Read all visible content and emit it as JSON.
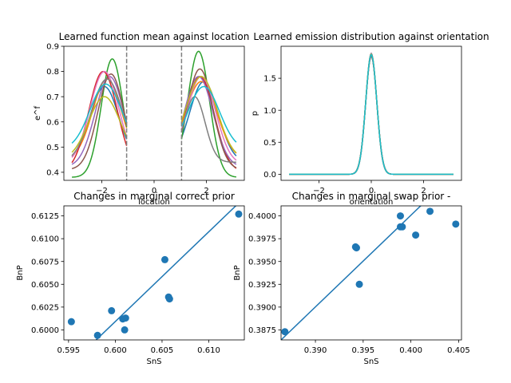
{
  "chart_data": [
    {
      "type": "line",
      "title": "Learned function mean against location",
      "xlabel": "location",
      "ylabel": "e^f",
      "xlim": [
        -3.45,
        3.45
      ],
      "ylim": [
        0.368,
        0.9
      ],
      "xticks": [
        -2,
        0,
        2
      ],
      "xtick_labels": [
        "−2",
        "0",
        "2"
      ],
      "yticks": [
        0.4,
        0.5,
        0.6,
        0.7,
        0.8,
        0.9
      ],
      "ytick_labels": [
        "0.4",
        "0.5",
        "0.6",
        "0.7",
        "0.8",
        "0.9"
      ],
      "vlines": [
        -1.05,
        1.05
      ],
      "x_domain": [
        -3.142,
        3.142
      ],
      "gap": [
        -1.05,
        1.05
      ],
      "series": [
        {
          "color": "#1f77b4",
          "base": 0.44,
          "peaks": [
            [
              -1.9,
              0.3,
              0.55
            ],
            [
              1.9,
              0.32,
              0.55
            ]
          ]
        },
        {
          "color": "#ff7f0e",
          "base": 0.45,
          "peaks": [
            [
              -1.8,
              0.32,
              0.55
            ],
            [
              1.8,
              0.31,
              0.6
            ]
          ]
        },
        {
          "color": "#2ca02c",
          "base": 0.38,
          "peaks": [
            [
              -1.6,
              0.47,
              0.42
            ],
            [
              1.7,
              0.5,
              0.42
            ]
          ]
        },
        {
          "color": "#d62728",
          "base": 0.4,
          "peaks": [
            [
              -1.95,
              0.4,
              0.55
            ],
            [
              1.75,
              0.38,
              0.55
            ]
          ]
        },
        {
          "color": "#9467bd",
          "base": 0.42,
          "peaks": [
            [
              -1.7,
              0.36,
              0.55
            ],
            [
              1.7,
              0.36,
              0.55
            ]
          ]
        },
        {
          "color": "#8c564b",
          "base": 0.41,
          "peaks": [
            [
              -1.65,
              0.38,
              0.5
            ],
            [
              1.75,
              0.4,
              0.5
            ]
          ]
        },
        {
          "color": "#e377c2",
          "base": 0.43,
          "peaks": [
            [
              -1.9,
              0.37,
              0.55
            ],
            [
              1.8,
              0.35,
              0.55
            ]
          ]
        },
        {
          "color": "#7f7f7f",
          "base": 0.44,
          "peaks": [
            [
              -1.8,
              0.33,
              0.6
            ],
            [
              1.55,
              0.26,
              0.4
            ]
          ]
        },
        {
          "color": "#bcbd22",
          "base": 0.45,
          "peaks": [
            [
              -1.9,
              0.25,
              0.6
            ],
            [
              1.8,
              0.33,
              0.6
            ]
          ]
        },
        {
          "color": "#17becf",
          "base": 0.49,
          "peaks": [
            [
              -1.85,
              0.26,
              0.6
            ],
            [
              1.9,
              0.25,
              0.6
            ]
          ]
        }
      ]
    },
    {
      "type": "line",
      "title": "Learned emission distribution against orientation",
      "xlabel": "orientation",
      "ylabel": "p",
      "xlim": [
        -3.45,
        3.45
      ],
      "ylim": [
        -0.095,
        2.0
      ],
      "xticks": [
        -2,
        0,
        2
      ],
      "xtick_labels": [
        "−2",
        "0",
        "2"
      ],
      "yticks": [
        0.0,
        0.5,
        1.0,
        1.5
      ],
      "ytick_labels": [
        "0.0",
        "0.5",
        "1.0",
        "1.5"
      ],
      "x_domain": [
        -3.142,
        3.142
      ],
      "series": [
        {
          "color": "#1f77b4",
          "peak": 1.88,
          "sd": 0.21
        },
        {
          "color": "#ff7f0e",
          "peak": 1.86,
          "sd": 0.213
        },
        {
          "color": "#2ca02c",
          "peak": 1.87,
          "sd": 0.212
        },
        {
          "color": "#d62728",
          "peak": 1.85,
          "sd": 0.214
        },
        {
          "color": "#9467bd",
          "peak": 1.89,
          "sd": 0.209
        },
        {
          "color": "#8c564b",
          "peak": 1.84,
          "sd": 0.215
        },
        {
          "color": "#e377c2",
          "peak": 1.87,
          "sd": 0.212
        },
        {
          "color": "#7f7f7f",
          "peak": 1.86,
          "sd": 0.213
        },
        {
          "color": "#bcbd22",
          "peak": 1.88,
          "sd": 0.211
        },
        {
          "color": "#17becf",
          "peak": 1.87,
          "sd": 0.212
        }
      ]
    },
    {
      "type": "scatter",
      "title": "Changes in marginal correct prior",
      "xlabel": "SnS",
      "ylabel": "BnP",
      "xlim": [
        0.5945,
        0.6138
      ],
      "ylim": [
        0.5989,
        0.6136
      ],
      "xticks": [
        0.595,
        0.6,
        0.605,
        0.61
      ],
      "xtick_labels": [
        "0.595",
        "0.600",
        "0.605",
        "0.610"
      ],
      "yticks": [
        0.6,
        0.6025,
        0.605,
        0.6075,
        0.61,
        0.6125
      ],
      "ytick_labels": [
        "0.6000",
        "0.6025",
        "0.6050",
        "0.6075",
        "0.6100",
        "0.6125"
      ],
      "color": "#1f77b4",
      "points": [
        [
          0.5953,
          0.6009
        ],
        [
          0.5981,
          0.5994
        ],
        [
          0.5996,
          0.6021
        ],
        [
          0.6008,
          0.6012
        ],
        [
          0.6011,
          0.6013
        ],
        [
          0.601,
          0.6
        ],
        [
          0.6053,
          0.6077
        ],
        [
          0.6057,
          0.6036
        ],
        [
          0.6058,
          0.6034
        ],
        [
          0.6132,
          0.6127
        ]
      ],
      "fit_line": [
        [
          0.5945,
          0.5955
        ],
        [
          0.6138,
          0.6145
        ]
      ]
    },
    {
      "type": "scatter",
      "title": "Changes in marginal swap prior -",
      "xlabel": "SnS",
      "ylabel": "BnP",
      "xlim": [
        0.3864,
        0.4053
      ],
      "ylim": [
        0.3864,
        0.4011
      ],
      "xticks": [
        0.39,
        0.395,
        0.4,
        0.405
      ],
      "xtick_labels": [
        "0.390",
        "0.395",
        "0.400",
        "0.405"
      ],
      "yticks": [
        0.3875,
        0.39,
        0.3925,
        0.395,
        0.3975,
        0.4
      ],
      "ytick_labels": [
        "0.3875",
        "0.3900",
        "0.3925",
        "0.3950",
        "0.3975",
        "0.4000"
      ],
      "color": "#1f77b4",
      "points": [
        [
          0.3868,
          0.3873
        ],
        [
          0.3942,
          0.3966
        ],
        [
          0.3943,
          0.3965
        ],
        [
          0.3946,
          0.3925
        ],
        [
          0.3989,
          0.4
        ],
        [
          0.3989,
          0.3988
        ],
        [
          0.3991,
          0.3988
        ],
        [
          0.4005,
          0.3979
        ],
        [
          0.402,
          0.4005
        ],
        [
          0.4047,
          0.3991
        ]
      ],
      "fit_line": [
        [
          0.3864,
          0.3864
        ],
        [
          0.4053,
          0.4054
        ]
      ]
    }
  ]
}
